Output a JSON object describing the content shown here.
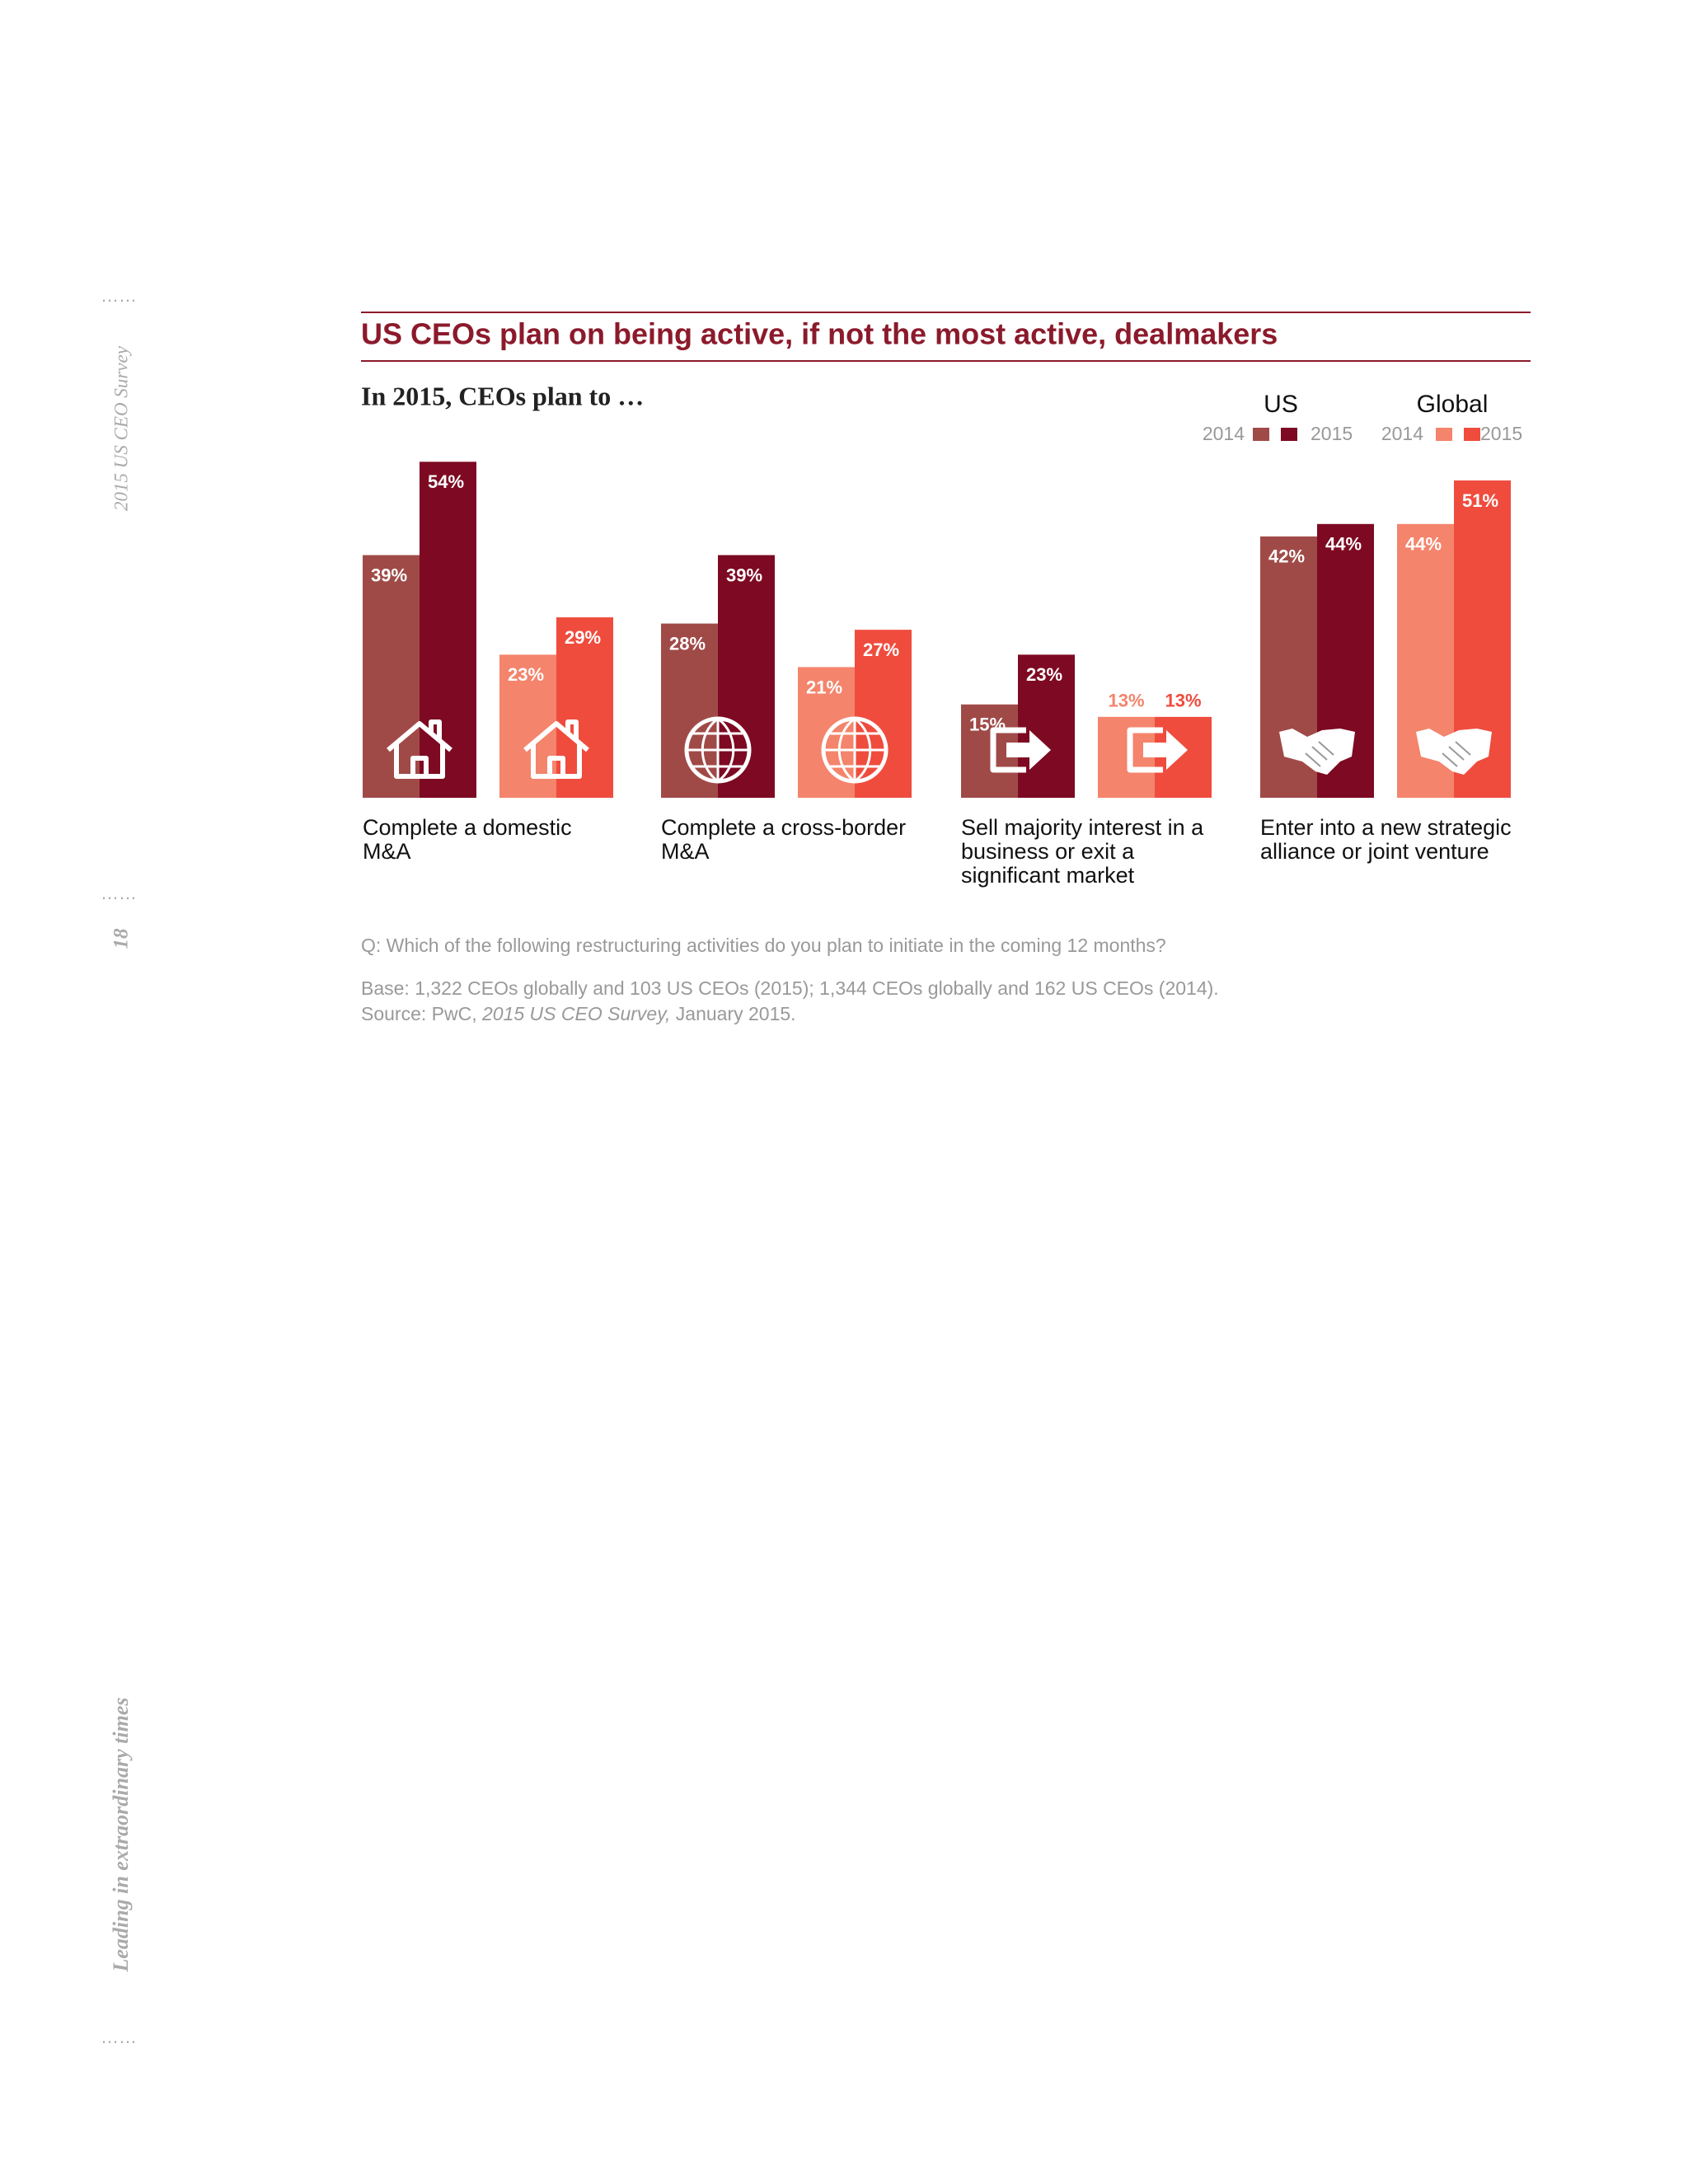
{
  "chart_data": {
    "type": "bar",
    "title": "US CEOs plan on being active, if not the most active, dealmakers",
    "subtitle": "In 2015, CEOs plan to …",
    "categories": [
      "Complete a domestic M&A",
      "Complete a cross-border M&A",
      "Sell majority interest in a business or exit a significant market",
      "Enter into a new strategic alliance or joint venture"
    ],
    "legend_groups": [
      "US",
      "Global"
    ],
    "series": [
      {
        "name": "2014",
        "group": "US",
        "color": "#a04a48",
        "values": [
          39,
          28,
          15,
          42
        ],
        "value_labels": [
          "39%",
          "28%",
          "15%",
          "42%"
        ]
      },
      {
        "name": "2015",
        "group": "US",
        "color": "#7d0a22",
        "values": [
          54,
          39,
          23,
          44
        ],
        "value_labels": [
          "54%",
          "39%",
          "23%",
          "44%"
        ]
      },
      {
        "name": "2014",
        "group": "Global",
        "color": "#f4846c",
        "values": [
          23,
          21,
          13,
          44
        ],
        "value_labels": [
          "23%",
          "21%",
          "13%",
          "44%"
        ]
      },
      {
        "name": "2015",
        "group": "Global",
        "color": "#ef4c3e",
        "values": [
          29,
          27,
          13,
          51
        ],
        "value_labels": [
          "29%",
          "27%",
          "13%",
          "51%"
        ]
      }
    ],
    "question": "Q: Which of the following restructuring activities do you plan to initiate in the coming 12 months?",
    "base": "Base: 1,322 CEOs globally and 103 US CEOs (2015); 1,344 CEOs globally and 162 US CEOs (2014).",
    "source": [
      "Source: PwC, ",
      "2015 US CEO Survey,",
      " January 2015."
    ]
  },
  "sidebar": {
    "publication": "2015 US CEO Survey",
    "page": "18",
    "theme": "Leading in extraordinary times"
  }
}
